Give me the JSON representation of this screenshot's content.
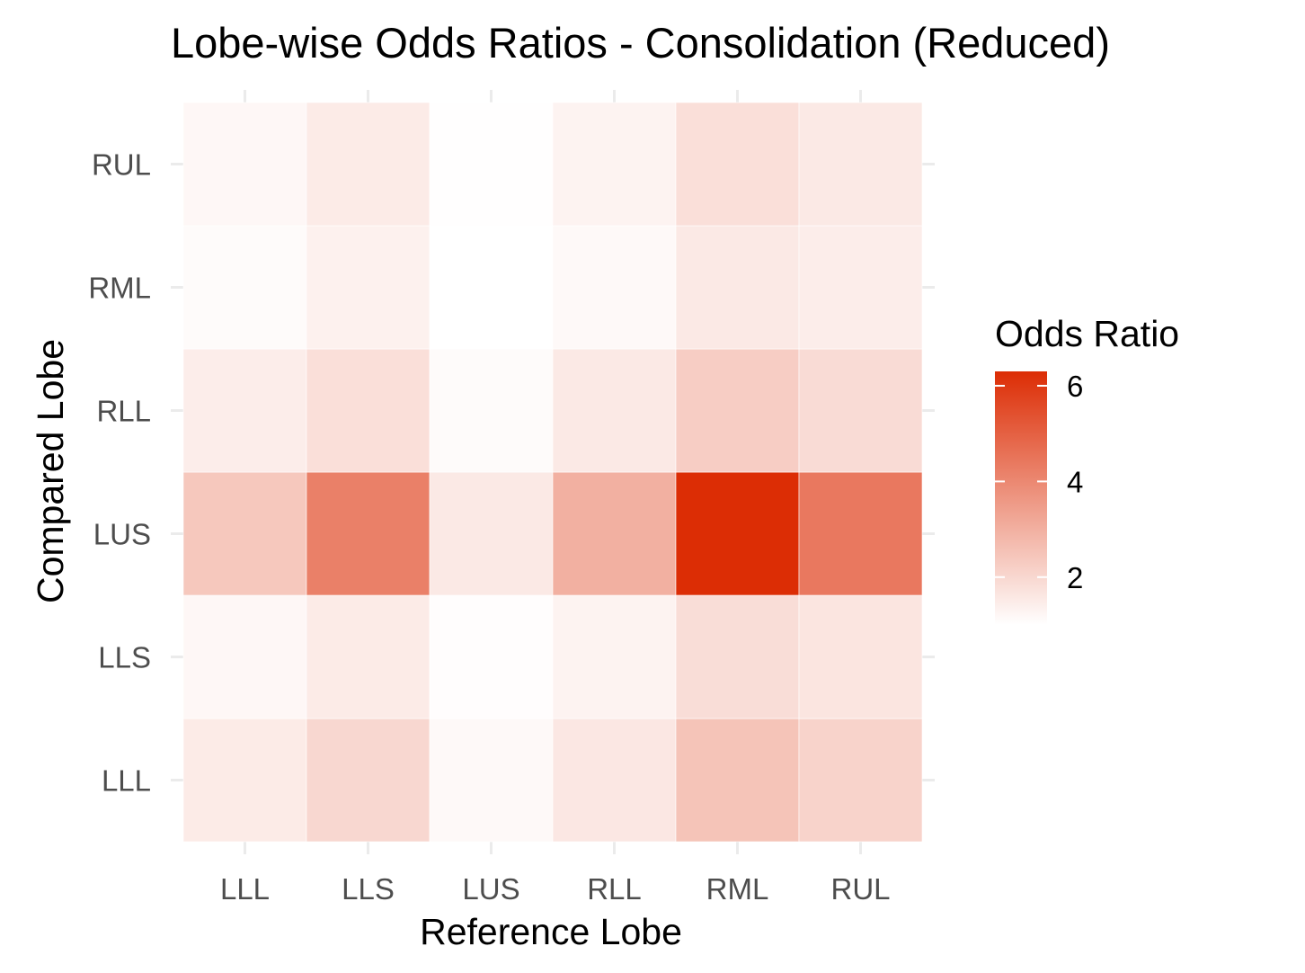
{
  "chart_data": {
    "type": "heatmap",
    "title": "Lobe-wise Odds Ratios - Consolidation (Reduced)",
    "xlabel": "Reference Lobe",
    "ylabel": "Compared Lobe",
    "x_categories": [
      "LLL",
      "LLS",
      "LUS",
      "RLL",
      "RML",
      "RUL"
    ],
    "y_categories": [
      "LLL",
      "LLS",
      "LUS",
      "RLL",
      "RML",
      "RUL"
    ],
    "values": [
      [
        1.5,
        2.0,
        1.15,
        1.6,
        2.5,
        2.1
      ],
      [
        1.2,
        1.5,
        1.05,
        1.3,
        1.85,
        1.65
      ],
      [
        2.4,
        4.2,
        1.55,
        3.0,
        6.3,
        4.4
      ],
      [
        1.45,
        1.8,
        1.1,
        1.55,
        2.25,
        1.9
      ],
      [
        1.1,
        1.35,
        1.0,
        1.15,
        1.55,
        1.45
      ],
      [
        1.2,
        1.5,
        1.02,
        1.3,
        1.8,
        1.55
      ]
    ],
    "legend": {
      "title": "Odds Ratio",
      "ticks": [
        2,
        4,
        6
      ],
      "placement": "right",
      "range": [
        1.0,
        6.3
      ]
    },
    "colors": {
      "low": "#ffffff",
      "high": "#dc2d05"
    },
    "grid": true
  }
}
